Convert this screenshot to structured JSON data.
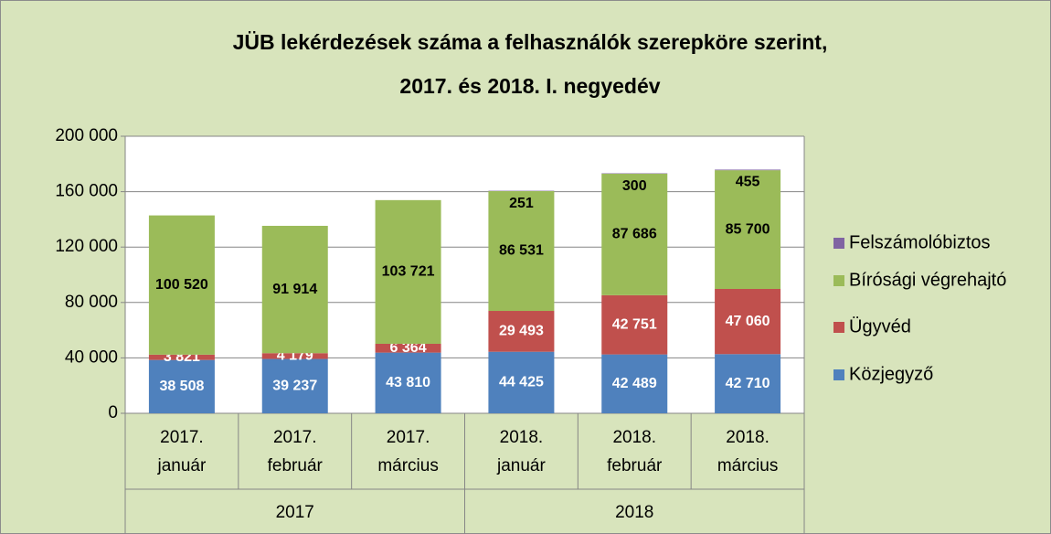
{
  "chart_data": {
    "type": "stacked_bar",
    "title": [
      "JÜB lekérdezések száma a felhasználók szerepköre szerint,",
      "2017. és 2018. I. negyedév"
    ],
    "categories": [
      [
        "2017.",
        "január"
      ],
      [
        "2017.",
        "február"
      ],
      [
        "2017.",
        "március"
      ],
      [
        "2018.",
        "január"
      ],
      [
        "2018.",
        "február"
      ],
      [
        "2018.",
        "március"
      ]
    ],
    "groups": [
      {
        "name": "2017",
        "span": 3
      },
      {
        "name": "2018",
        "span": 3
      }
    ],
    "series": [
      {
        "name": "Közjegyző",
        "color": "#4f81bd",
        "label_color": "#ffffff",
        "values": [
          38508,
          39237,
          43810,
          44425,
          42489,
          42710
        ],
        "value_labels": [
          "38 508",
          "39 237",
          "43 810",
          "44 425",
          "42 489",
          "42 710"
        ]
      },
      {
        "name": "Ügyvéd",
        "color": "#c0504d",
        "label_color": "#ffffff",
        "values": [
          3821,
          4179,
          6364,
          29493,
          42751,
          47060
        ],
        "value_labels": [
          "3 821",
          "4 179",
          "6 364",
          "29 493",
          "42 751",
          "47 060"
        ]
      },
      {
        "name": "Bírósági végrehajtó",
        "color": "#9bbb59",
        "label_color": "#000000",
        "values": [
          100520,
          91914,
          103721,
          86531,
          87686,
          85700
        ],
        "value_labels": [
          "100 520",
          "91 914",
          "103 721",
          "86 531",
          "87 686",
          "85 700"
        ]
      },
      {
        "name": "Felszámolóbiztos",
        "color": "#8064a2",
        "label_color": "#000000",
        "values": [
          null,
          null,
          null,
          251,
          300,
          455
        ],
        "value_labels": [
          null,
          null,
          null,
          "251",
          "300",
          "455"
        ]
      }
    ],
    "ylim": [
      0,
      200000
    ],
    "yticks": [
      0,
      {
        "value": 40000,
        "label": "40 000"
      },
      {
        "value": 80000,
        "label": "80 000"
      },
      {
        "value": 120000,
        "label": "120 000"
      },
      {
        "value": 160000,
        "label": "160 000"
      },
      {
        "value": 200000,
        "label": "200 000"
      }
    ],
    "grid": true,
    "legend": "right"
  }
}
